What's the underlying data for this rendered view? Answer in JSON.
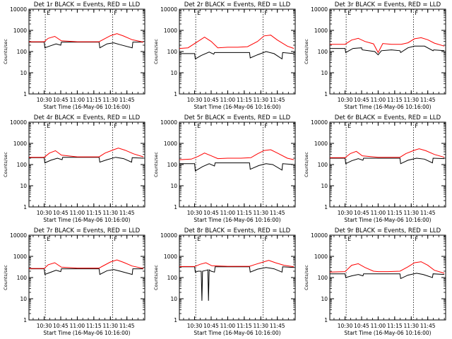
{
  "chart_data": [
    {
      "type": "line",
      "title": "Det 1r BLACK = Events, RED = LLD",
      "xlabel": "Start Time (16-May-06 10:16:00)",
      "ylabel": "Counts/sec",
      "y_scale": "log",
      "ylim": [
        1,
        10000
      ],
      "xlim": [
        10.27,
        12.02
      ],
      "x_tick_labels": [
        "10:30",
        "10:45",
        "11:00",
        "11:15",
        "11:30",
        "11:45"
      ],
      "y_tick_labels": [
        "1",
        "10",
        "100",
        "1000",
        "10000"
      ],
      "markers": [
        "10:31",
        "11:32"
      ],
      "marker_labels": [
        "E",
        "F"
      ],
      "series": [
        {
          "name": "BLACK = Events",
          "color": "#000000",
          "x": [
            10.27,
            10.5,
            10.51,
            10.58,
            10.68,
            10.75,
            10.76,
            11.0,
            11.33,
            11.34,
            11.45,
            11.55,
            11.65,
            11.83,
            11.84,
            12.0
          ],
          "y": [
            280,
            280,
            150,
            180,
            230,
            200,
            280,
            280,
            280,
            150,
            230,
            260,
            210,
            150,
            280,
            280
          ]
        },
        {
          "name": "RED = LLD",
          "color": "#ff0000",
          "x": [
            10.27,
            10.5,
            10.56,
            10.66,
            10.76,
            11.0,
            11.33,
            11.4,
            11.5,
            11.6,
            11.7,
            11.83,
            12.0
          ],
          "y": [
            290,
            290,
            420,
            520,
            320,
            290,
            290,
            380,
            560,
            700,
            540,
            360,
            280
          ]
        }
      ]
    },
    {
      "type": "line",
      "title": "Det 2r BLACK = Events, RED = LLD",
      "xlabel": "Start Time (16-May-06 10:16:00)",
      "ylabel": "Counts/sec",
      "y_scale": "log",
      "ylim": [
        1,
        10000
      ],
      "xlim": [
        10.27,
        12.02
      ],
      "x_tick_labels": [
        "10:30",
        "10:45",
        "11:00",
        "11:15",
        "11:30",
        "11:45"
      ],
      "y_tick_labels": [
        "1",
        "10",
        "100",
        "1000",
        "10000"
      ],
      "markers": [
        "10:31",
        "11:32"
      ],
      "marker_labels": [
        "E",
        "F"
      ],
      "series": [
        {
          "name": "BLACK = Events",
          "color": "#000000",
          "x": [
            10.27,
            10.5,
            10.51,
            10.6,
            10.72,
            10.79,
            10.8,
            11.33,
            11.34,
            11.45,
            11.58,
            11.7,
            11.82,
            11.83,
            12.0
          ],
          "y": [
            80,
            80,
            45,
            65,
            95,
            75,
            90,
            90,
            50,
            70,
            100,
            80,
            45,
            90,
            80
          ]
        },
        {
          "name": "RED = LLD",
          "color": "#ff0000",
          "x": [
            10.27,
            10.4,
            10.55,
            10.65,
            10.75,
            10.85,
            11.0,
            11.15,
            11.3,
            11.45,
            11.55,
            11.65,
            11.75,
            11.9,
            12.0
          ],
          "y": [
            140,
            150,
            300,
            480,
            300,
            150,
            160,
            160,
            170,
            300,
            550,
            600,
            350,
            180,
            140
          ]
        }
      ]
    },
    {
      "type": "line",
      "title": "Det 3r BLACK = Events, RED = LLD",
      "xlabel": "Start Time (16-May-06 10:16:00)",
      "ylabel": "Counts/sec",
      "y_scale": "log",
      "ylim": [
        1,
        10000
      ],
      "xlim": [
        10.27,
        12.02
      ],
      "x_tick_labels": [
        "10:30",
        "10:45",
        "11:00",
        "11:15",
        "11:30",
        "11:45"
      ],
      "y_tick_labels": [
        "1",
        "10",
        "100",
        "1000",
        "10000"
      ],
      "markers": [
        "10:31",
        "11:32"
      ],
      "marker_labels": [
        "E",
        "F"
      ],
      "series": [
        {
          "name": "BLACK = Events",
          "color": "#000000",
          "x": [
            10.27,
            10.5,
            10.51,
            10.62,
            10.75,
            10.76,
            10.95,
            11.0,
            11.05,
            11.2,
            11.33,
            11.34,
            11.45,
            11.55,
            11.7,
            11.83,
            11.84,
            12.0
          ],
          "y": [
            140,
            140,
            90,
            140,
            150,
            120,
            100,
            70,
            110,
            120,
            110,
            90,
            150,
            180,
            180,
            110,
            120,
            110
          ]
        },
        {
          "name": "RED = LLD",
          "color": "#ff0000",
          "x": [
            10.27,
            10.5,
            10.6,
            10.7,
            10.8,
            10.93,
            11.0,
            11.07,
            11.2,
            11.35,
            11.45,
            11.55,
            11.65,
            11.75,
            11.85,
            12.0
          ],
          "y": [
            220,
            220,
            350,
            420,
            300,
            230,
            90,
            240,
            220,
            220,
            260,
            400,
            450,
            360,
            250,
            180
          ]
        }
      ]
    },
    {
      "type": "line",
      "title": "Det 4r BLACK = Events, RED = LLD",
      "xlabel": "Start Time (16-May-06 10:16:00)",
      "ylabel": "Counts/sec",
      "y_scale": "log",
      "ylim": [
        1,
        10000
      ],
      "xlim": [
        10.27,
        12.02
      ],
      "x_tick_labels": [
        "10:30",
        "10:45",
        "11:00",
        "11:15",
        "11:30",
        "11:45"
      ],
      "y_tick_labels": [
        "1",
        "10",
        "100",
        "1000",
        "10000"
      ],
      "markers": [
        "10:31",
        "11:32"
      ],
      "marker_labels": [
        "E",
        "F"
      ],
      "series": [
        {
          "name": "BLACK = Events",
          "color": "#000000",
          "x": [
            10.27,
            10.5,
            10.51,
            10.6,
            10.7,
            10.77,
            10.78,
            11.33,
            11.34,
            11.45,
            11.58,
            11.7,
            11.82,
            11.83,
            12.0
          ],
          "y": [
            210,
            210,
            120,
            160,
            200,
            170,
            220,
            220,
            130,
            170,
            220,
            190,
            130,
            210,
            200
          ]
        },
        {
          "name": "RED = LLD",
          "color": "#ff0000",
          "x": [
            10.27,
            10.5,
            10.58,
            10.67,
            10.76,
            11.0,
            11.33,
            11.42,
            11.55,
            11.62,
            11.72,
            11.85,
            12.0
          ],
          "y": [
            220,
            220,
            350,
            450,
            280,
            230,
            230,
            350,
            500,
            600,
            480,
            320,
            230
          ]
        }
      ]
    },
    {
      "type": "line",
      "title": "Det 5r BLACK = Events, RED = LLD",
      "xlabel": "Start Time (16-May-06 10:16:00)",
      "ylabel": "Counts/sec",
      "y_scale": "log",
      "ylim": [
        1,
        10000
      ],
      "xlim": [
        10.27,
        12.02
      ],
      "x_tick_labels": [
        "10:30",
        "10:45",
        "11:00",
        "11:15",
        "11:30",
        "11:45"
      ],
      "y_tick_labels": [
        "1",
        "10",
        "100",
        "1000",
        "10000"
      ],
      "markers": [
        "10:31",
        "11:32"
      ],
      "marker_labels": [
        "E",
        "F"
      ],
      "series": [
        {
          "name": "BLACK = Events",
          "color": "#000000",
          "x": [
            10.27,
            10.5,
            10.51,
            10.62,
            10.72,
            10.8,
            10.81,
            11.33,
            11.34,
            11.47,
            11.58,
            11.68,
            11.82,
            11.83,
            12.0
          ],
          "y": [
            110,
            110,
            50,
            80,
            110,
            85,
            120,
            120,
            60,
            90,
            110,
            100,
            55,
            110,
            100
          ]
        },
        {
          "name": "RED = LLD",
          "color": "#ff0000",
          "x": [
            10.27,
            10.45,
            10.55,
            10.65,
            10.75,
            10.85,
            11.0,
            11.2,
            11.35,
            11.45,
            11.55,
            11.65,
            11.75,
            11.9,
            12.0
          ],
          "y": [
            170,
            180,
            240,
            350,
            260,
            190,
            200,
            200,
            210,
            320,
            460,
            500,
            350,
            200,
            170
          ]
        }
      ]
    },
    {
      "type": "line",
      "title": "Det 6r BLACK = Events, RED = LLD",
      "xlabel": "Start Time (16-May-06 10:16:00)",
      "ylabel": "Counts/sec",
      "y_scale": "log",
      "ylim": [
        1,
        10000
      ],
      "xlim": [
        10.27,
        12.02
      ],
      "x_tick_labels": [
        "10:30",
        "10:45",
        "11:00",
        "11:15",
        "11:30",
        "11:45"
      ],
      "y_tick_labels": [
        "1",
        "10",
        "100",
        "1000",
        "10000"
      ],
      "markers": [
        "10:31",
        "11:32"
      ],
      "marker_labels": [
        "E",
        "F"
      ],
      "series": [
        {
          "name": "BLACK = Events",
          "color": "#000000",
          "x": [
            10.27,
            10.5,
            10.51,
            10.6,
            10.7,
            10.77,
            10.78,
            11.33,
            11.34,
            11.45,
            11.58,
            11.7,
            11.82,
            11.83,
            12.0
          ],
          "y": [
            200,
            200,
            110,
            150,
            190,
            160,
            200,
            200,
            110,
            160,
            200,
            180,
            120,
            200,
            190
          ]
        },
        {
          "name": "RED = LLD",
          "color": "#ff0000",
          "x": [
            10.27,
            10.5,
            10.58,
            10.67,
            10.76,
            11.0,
            11.33,
            11.42,
            11.55,
            11.62,
            11.72,
            11.85,
            12.0
          ],
          "y": [
            210,
            210,
            330,
            420,
            260,
            220,
            220,
            330,
            480,
            560,
            450,
            300,
            220
          ]
        }
      ]
    },
    {
      "type": "line",
      "title": "Det 7r BLACK = Events, RED = LLD",
      "xlabel": "Start Time (16-May-06 10:16:00)",
      "ylabel": "Counts/sec",
      "y_scale": "log",
      "ylim": [
        1,
        10000
      ],
      "xlim": [
        10.27,
        12.02
      ],
      "x_tick_labels": [
        "10:30",
        "10:45",
        "11:00",
        "11:15",
        "11:30",
        "11:45"
      ],
      "y_tick_labels": [
        "1",
        "10",
        "100",
        "1000",
        "10000"
      ],
      "markers": [
        "10:31",
        "11:32"
      ],
      "marker_labels": [
        "E",
        "F"
      ],
      "series": [
        {
          "name": "BLACK = Events",
          "color": "#000000",
          "x": [
            10.27,
            10.5,
            10.51,
            10.58,
            10.68,
            10.75,
            10.76,
            11.0,
            11.33,
            11.34,
            11.45,
            11.55,
            11.65,
            11.83,
            11.84,
            12.0
          ],
          "y": [
            260,
            260,
            140,
            170,
            220,
            190,
            260,
            260,
            260,
            140,
            210,
            240,
            200,
            140,
            260,
            260
          ]
        },
        {
          "name": "RED = LLD",
          "color": "#ff0000",
          "x": [
            10.27,
            10.5,
            10.56,
            10.66,
            10.76,
            11.0,
            11.33,
            11.4,
            11.5,
            11.6,
            11.7,
            11.83,
            12.0
          ],
          "y": [
            270,
            270,
            400,
            500,
            310,
            280,
            280,
            370,
            540,
            680,
            520,
            350,
            270
          ]
        }
      ]
    },
    {
      "type": "line",
      "title": "Det 8r BLACK = Events, RED = LLD",
      "xlabel": "Start Time (16-May-06 10:16:00)",
      "ylabel": "Counts/sec",
      "y_scale": "log",
      "ylim": [
        1,
        10000
      ],
      "xlim": [
        10.27,
        12.02
      ],
      "x_tick_labels": [
        "10:30",
        "10:45",
        "11:00",
        "11:15",
        "11:30",
        "11:45"
      ],
      "y_tick_labels": [
        "1",
        "10",
        "100",
        "1000",
        "10000"
      ],
      "markers": [
        "10:31",
        "11:32"
      ],
      "marker_labels": [
        "E",
        "F"
      ],
      "series": [
        {
          "name": "BLACK = Events",
          "color": "#000000",
          "x": [
            10.27,
            10.5,
            10.51,
            10.55,
            10.6,
            10.61,
            10.62,
            10.68,
            10.7,
            10.71,
            10.72,
            10.75,
            10.8,
            10.81,
            11.33,
            11.34,
            11.45,
            11.58,
            11.7,
            11.82,
            11.83,
            12.0
          ],
          "y": [
            320,
            320,
            180,
            200,
            200,
            8,
            200,
            220,
            230,
            8,
            230,
            200,
            180,
            320,
            320,
            180,
            250,
            300,
            260,
            180,
            320,
            300
          ]
        },
        {
          "name": "RED = LLD",
          "color": "#ff0000",
          "x": [
            10.27,
            10.5,
            10.58,
            10.67,
            10.76,
            11.0,
            11.33,
            11.42,
            11.55,
            11.62,
            11.72,
            11.85,
            12.0
          ],
          "y": [
            330,
            330,
            420,
            500,
            360,
            340,
            340,
            420,
            560,
            650,
            500,
            380,
            320
          ]
        }
      ]
    },
    {
      "type": "line",
      "title": "Det 9r BLACK = Events, RED = LLD",
      "xlabel": "Start Time (16-May-06 10:16:00)",
      "ylabel": "Counts/sec",
      "y_scale": "log",
      "ylim": [
        1,
        10000
      ],
      "xlim": [
        10.27,
        12.02
      ],
      "x_tick_labels": [
        "10:30",
        "10:45",
        "11:00",
        "11:15",
        "11:30",
        "11:45"
      ],
      "y_tick_labels": [
        "1",
        "10",
        "100",
        "1000",
        "10000"
      ],
      "markers": [
        "10:31",
        "11:32"
      ],
      "marker_labels": [
        "E",
        "F"
      ],
      "series": [
        {
          "name": "BLACK = Events",
          "color": "#000000",
          "x": [
            10.27,
            10.5,
            10.51,
            10.6,
            10.7,
            10.77,
            10.78,
            11.0,
            11.33,
            11.34,
            11.45,
            11.58,
            11.68,
            11.82,
            11.83,
            12.0
          ],
          "y": [
            150,
            150,
            100,
            120,
            140,
            120,
            150,
            150,
            150,
            90,
            130,
            160,
            140,
            100,
            150,
            140
          ]
        },
        {
          "name": "RED = LLD",
          "color": "#ff0000",
          "x": [
            10.27,
            10.5,
            10.6,
            10.7,
            10.8,
            10.93,
            11.0,
            11.15,
            11.33,
            11.45,
            11.55,
            11.65,
            11.75,
            11.85,
            12.0
          ],
          "y": [
            180,
            190,
            380,
            450,
            300,
            200,
            190,
            190,
            200,
            320,
            500,
            560,
            380,
            220,
            160
          ]
        }
      ]
    }
  ]
}
